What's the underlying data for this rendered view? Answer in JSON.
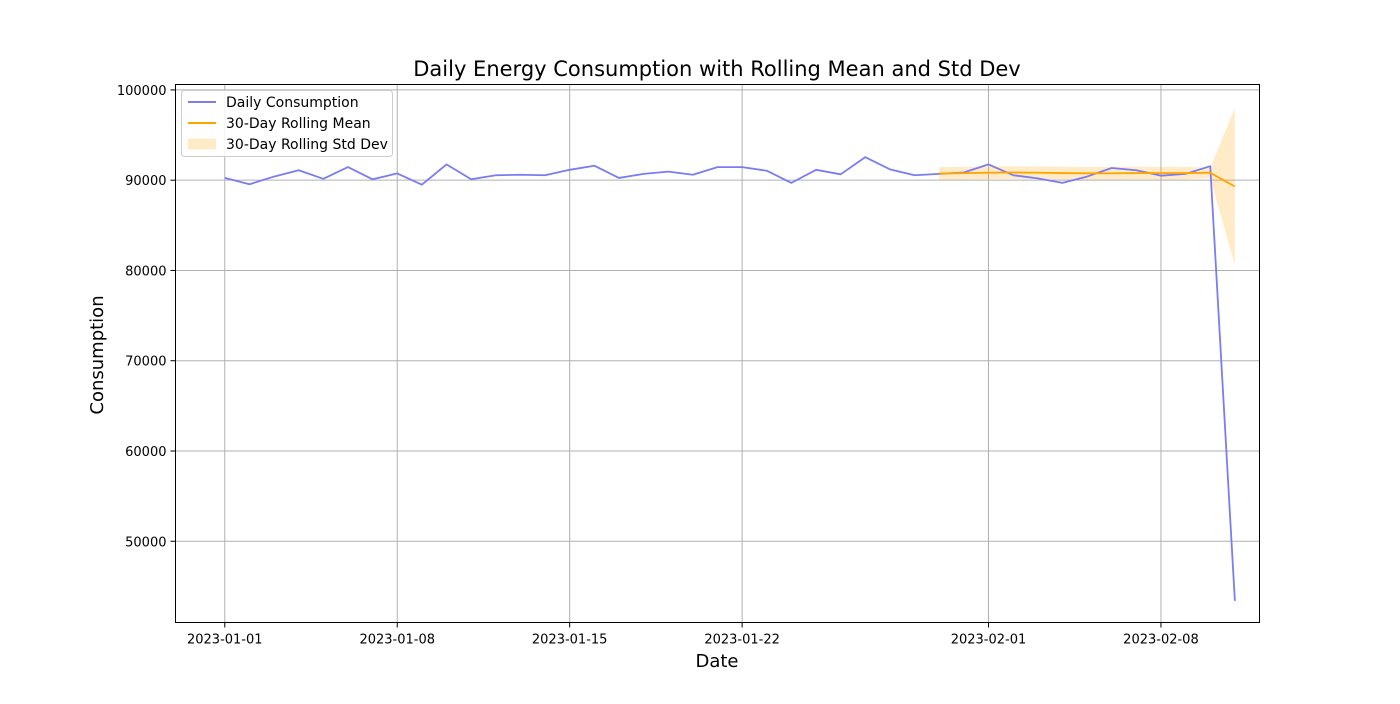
{
  "chart_data": {
    "type": "line",
    "title": "Daily Energy Consumption with Rolling Mean and Std Dev",
    "xlabel": "Date",
    "ylabel": "Consumption",
    "x_start": "2023-01-01",
    "x_end": "2023-02-11",
    "xlim": [
      "2022-12-30",
      "2023-02-12"
    ],
    "ylim": [
      41000,
      100600
    ],
    "x_ticks": [
      "2023-01-01",
      "2023-01-08",
      "2023-01-15",
      "2023-01-22",
      "2023-02-01",
      "2023-02-08"
    ],
    "y_ticks": [
      50000,
      60000,
      70000,
      80000,
      90000,
      100000
    ],
    "grid": true,
    "legend_position": "upper-left",
    "series": [
      {
        "name": "Daily Consumption",
        "color": "#7b7bf3",
        "x": [
          "2023-01-01",
          "2023-01-02",
          "2023-01-03",
          "2023-01-04",
          "2023-01-05",
          "2023-01-06",
          "2023-01-07",
          "2023-01-08",
          "2023-01-09",
          "2023-01-10",
          "2023-01-11",
          "2023-01-12",
          "2023-01-13",
          "2023-01-14",
          "2023-01-15",
          "2023-01-16",
          "2023-01-17",
          "2023-01-18",
          "2023-01-19",
          "2023-01-20",
          "2023-01-21",
          "2023-01-22",
          "2023-01-23",
          "2023-01-24",
          "2023-01-25",
          "2023-01-26",
          "2023-01-27",
          "2023-01-28",
          "2023-01-29",
          "2023-01-30",
          "2023-01-31",
          "2023-02-01",
          "2023-02-02",
          "2023-02-03",
          "2023-02-04",
          "2023-02-05",
          "2023-02-06",
          "2023-02-07",
          "2023-02-08",
          "2023-02-09",
          "2023-02-10",
          "2023-02-11"
        ],
        "values": [
          90250,
          89550,
          90400,
          91100,
          90150,
          91450,
          90100,
          90750,
          89500,
          91750,
          90100,
          90550,
          90600,
          90550,
          91150,
          91600,
          90250,
          90700,
          90950,
          90600,
          91450,
          91450,
          91050,
          89700,
          91150,
          90650,
          92550,
          91200,
          90550,
          90700,
          90850,
          91750,
          90550,
          90200,
          89700,
          90400,
          91350,
          91100,
          90500,
          90700,
          91550,
          43400
        ]
      },
      {
        "name": "30-Day Rolling Mean",
        "color": "#ffa500",
        "x": [
          "2023-01-30",
          "2023-01-31",
          "2023-02-01",
          "2023-02-02",
          "2023-02-03",
          "2023-02-04",
          "2023-02-05",
          "2023-02-06",
          "2023-02-07",
          "2023-02-08",
          "2023-02-09",
          "2023-02-10",
          "2023-02-11"
        ],
        "values": [
          90750,
          90780,
          90830,
          90850,
          90820,
          90790,
          90760,
          90770,
          90790,
          90780,
          90790,
          90820,
          89300
        ]
      }
    ],
    "band": {
      "name": "30-Day Rolling Std Dev",
      "color": "#ffa500",
      "opacity": 0.22,
      "x": [
        "2023-01-30",
        "2023-01-31",
        "2023-02-01",
        "2023-02-02",
        "2023-02-03",
        "2023-02-04",
        "2023-02-05",
        "2023-02-06",
        "2023-02-07",
        "2023-02-08",
        "2023-02-09",
        "2023-02-10",
        "2023-02-11"
      ],
      "upper": [
        91450,
        91480,
        91530,
        91550,
        91520,
        91490,
        91460,
        91470,
        91490,
        91480,
        91490,
        91350,
        98000
      ],
      "lower": [
        90050,
        90080,
        90130,
        90150,
        90120,
        90090,
        90060,
        90070,
        90090,
        90080,
        90090,
        90250,
        80600
      ]
    }
  }
}
